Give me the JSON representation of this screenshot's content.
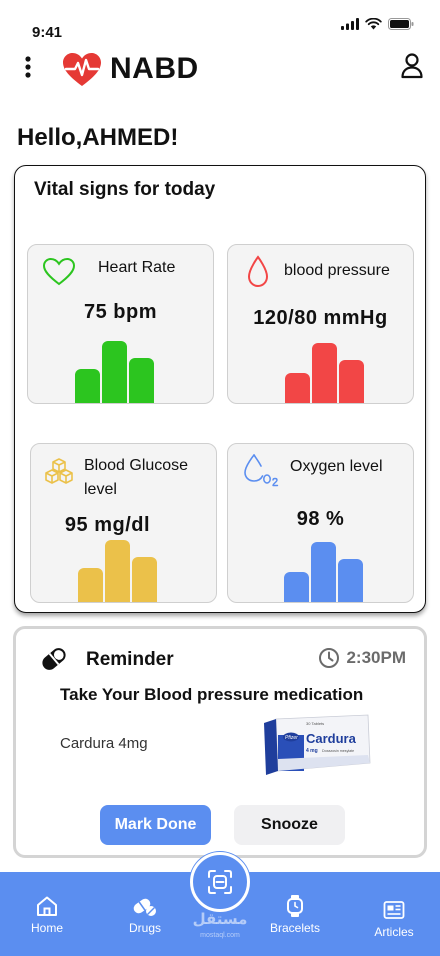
{
  "status_bar": {
    "time": "9:41"
  },
  "header": {
    "app_title": "NABD"
  },
  "greeting": "Hello,AHMED!",
  "vitals": {
    "title": "Vital signs for today",
    "tiles": [
      {
        "label": "Heart Rate",
        "value": "75  bpm",
        "icon": "heart-icon",
        "color": "#2cc51f",
        "bar_levels": [
          0.55,
          1.0,
          0.72
        ]
      },
      {
        "label": "blood pressure",
        "value": "120/80 mmHg",
        "icon": "blood-drop-icon",
        "color": "#f24646",
        "bar_levels": [
          0.5,
          1.0,
          0.72
        ]
      },
      {
        "label": "Blood Glucose level",
        "value": "95  mg/dl",
        "icon": "sugar-cubes-icon",
        "color": "#ebc14a",
        "bar_levels": [
          0.55,
          1.0,
          0.72
        ]
      },
      {
        "label": "Oxygen level",
        "value": "98  %",
        "icon": "oxygen-icon",
        "color": "#5b8ef0",
        "bar_levels": [
          0.5,
          1.0,
          0.72
        ]
      }
    ]
  },
  "reminder": {
    "title": "Reminder",
    "time": "2:30PM",
    "message": "Take Your Blood pressure medication",
    "drug": "Cardura 4mg",
    "drug_box": {
      "brand": "Cardura",
      "maker": "Pfizer",
      "dose": "4 mg",
      "top_text": "30 Tablets",
      "sub_text": "Doxazosin mesylate"
    },
    "mark_done_label": "Mark Done",
    "snooze_label": "Snooze"
  },
  "bottom_nav": {
    "items": [
      {
        "label": "Home",
        "icon": "home-icon"
      },
      {
        "label": "Drugs",
        "icon": "pills-icon"
      },
      {
        "label": "Bracelets",
        "icon": "watch-icon"
      },
      {
        "label": "Articles",
        "icon": "articles-icon"
      }
    ],
    "scan_icon": "scan-face-icon"
  },
  "watermark": {
    "text": "مستقل",
    "sub": "mostaql.com"
  },
  "colors": {
    "accent": "#5b8ef0",
    "heart_logo": "#e53935"
  }
}
